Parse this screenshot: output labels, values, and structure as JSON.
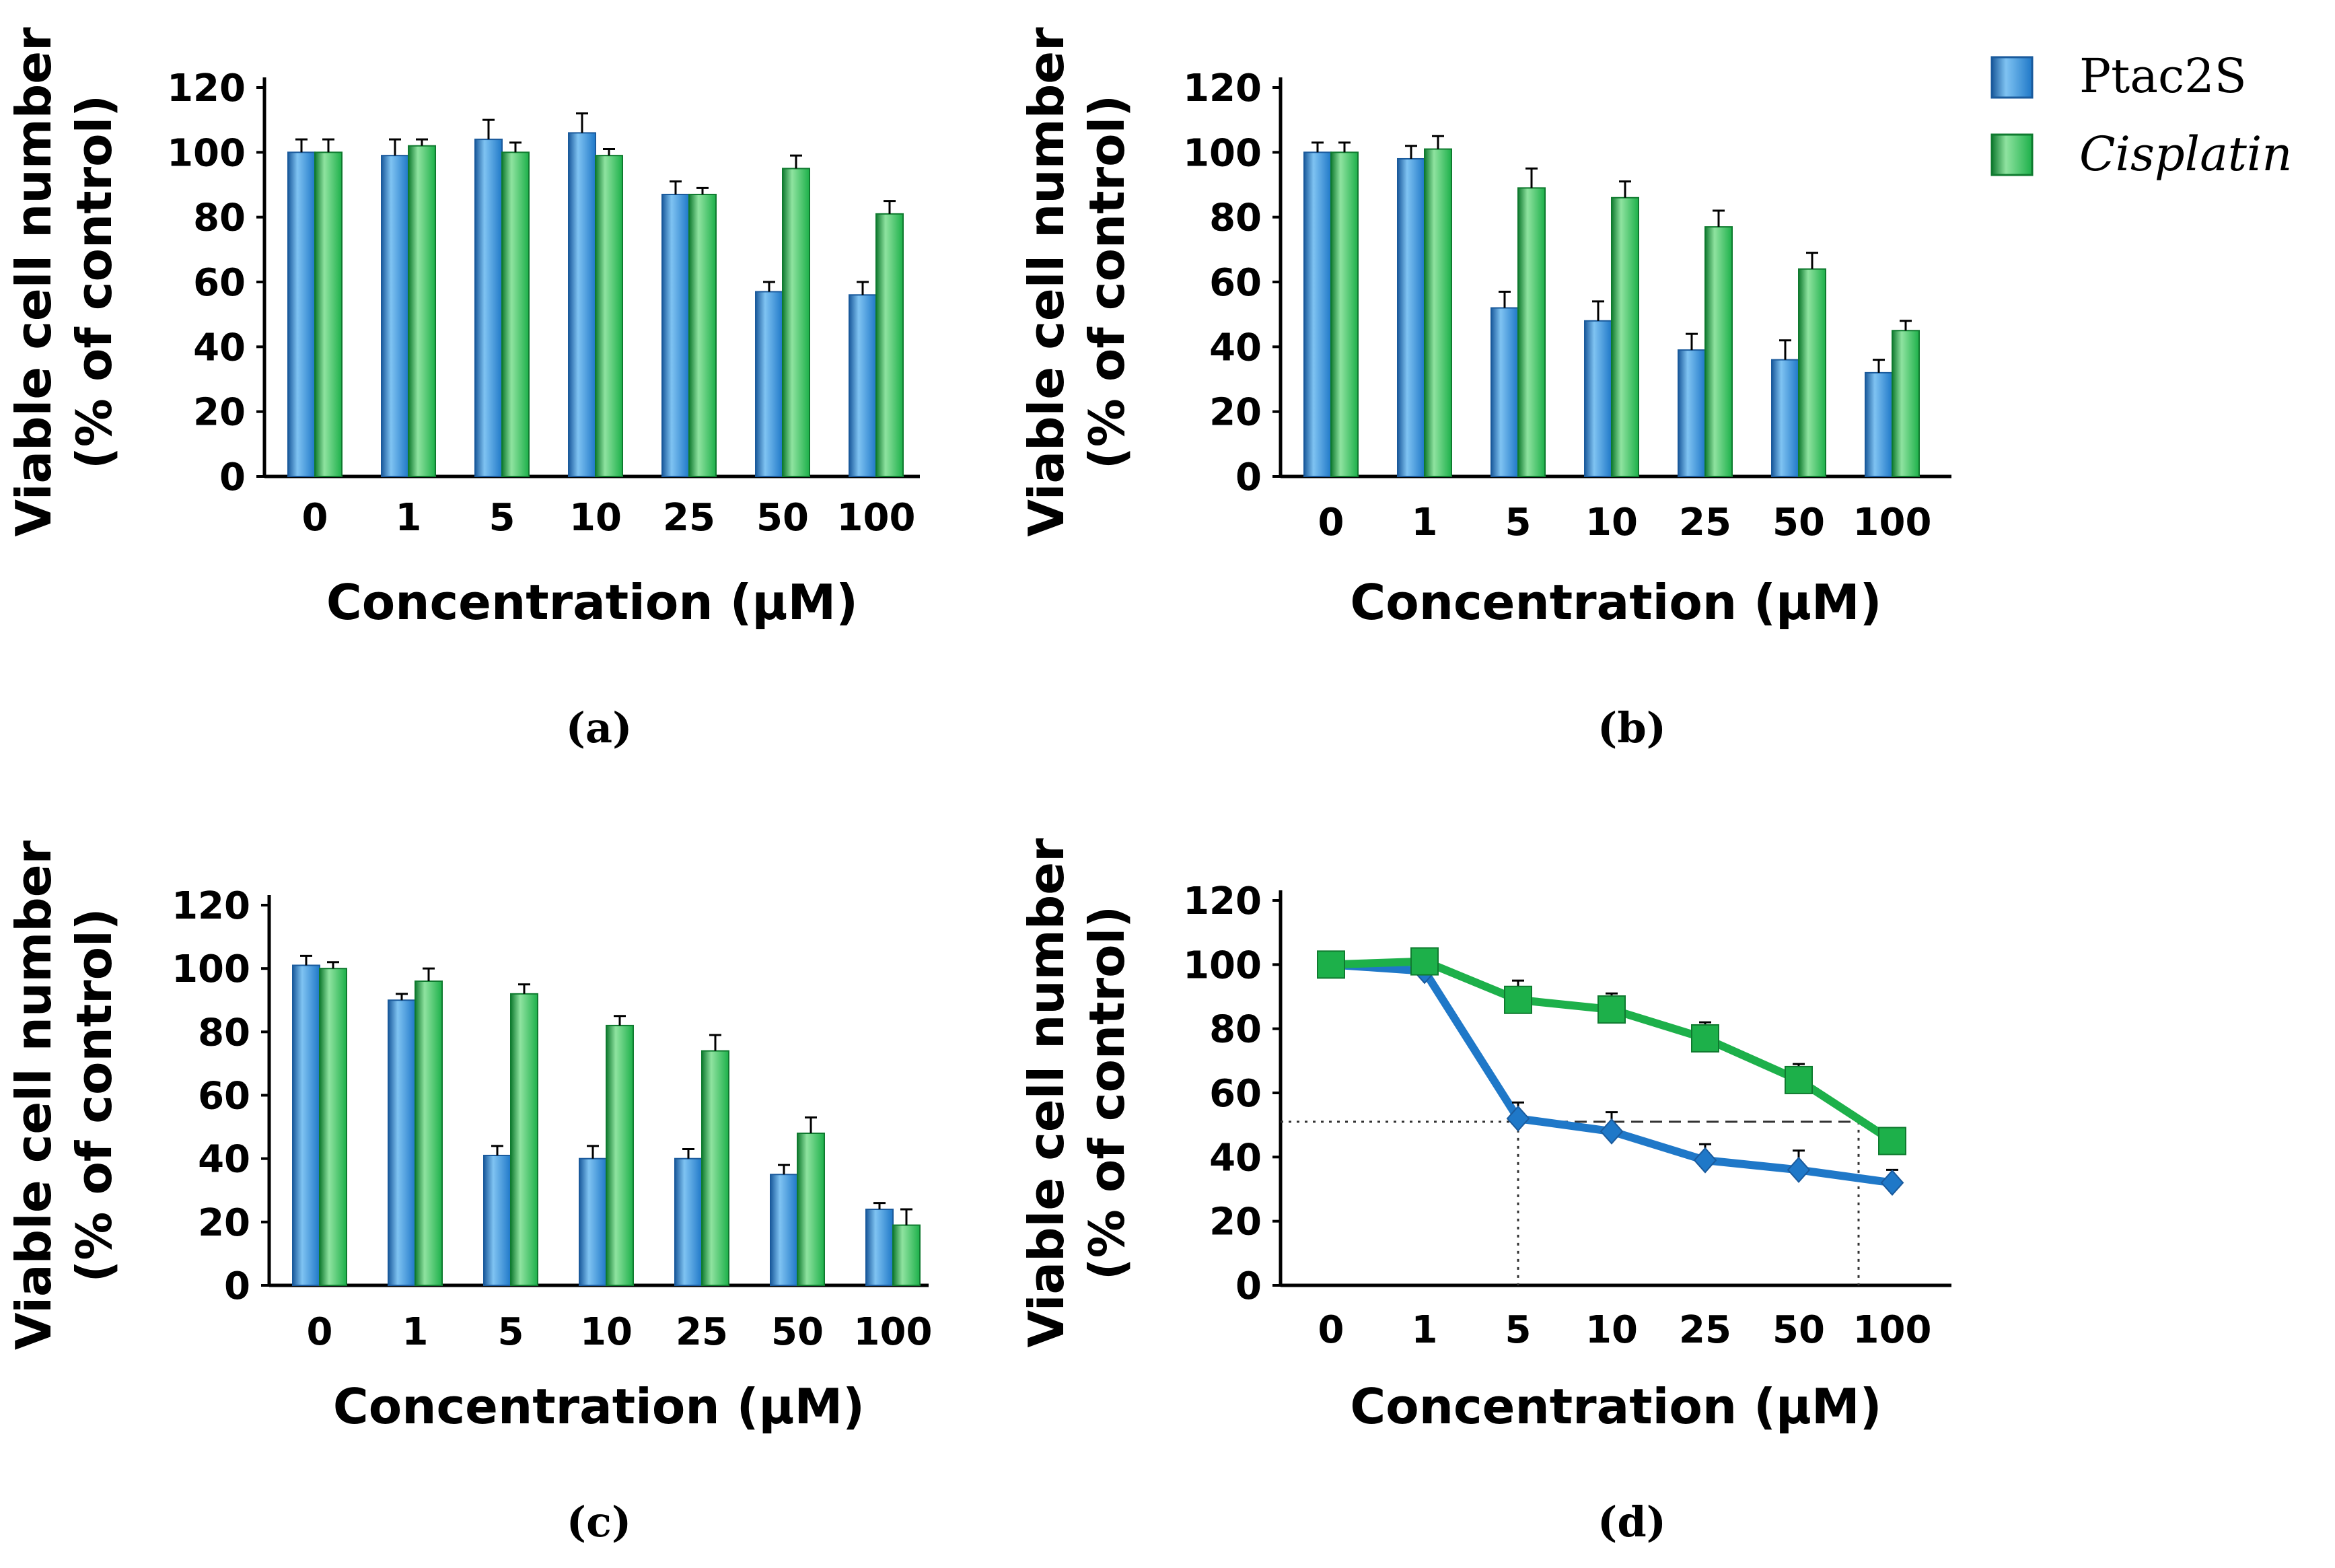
{
  "colors": {
    "ptac2s": "#1f78c8",
    "ptac2s_light": "#7fc3f2",
    "ptac2s_dark": "#1a5a9c",
    "cisplatin": "#1db04a",
    "cisplatin_light": "#8fe3a0",
    "cisplatin_dark": "#0f7a2f",
    "axis": "#000000",
    "guide": "#333333"
  },
  "legend": {
    "items": [
      {
        "label": "Ptac2S",
        "series": "ptac2s",
        "italic": false
      },
      {
        "label": "Cisplatin",
        "series": "cisplatin",
        "italic": true
      }
    ]
  },
  "chart_data": [
    {
      "panel": "(a)",
      "type": "bar",
      "xlabel": "Concentration (μM)",
      "ylabel_line1": "Viable cell number",
      "ylabel_line2": "(% of control)",
      "ylim": [
        0,
        120
      ],
      "yticks": [
        "0",
        "20",
        "40",
        "60",
        "80",
        "100",
        "120"
      ],
      "categories": [
        "0",
        "1",
        "5",
        "10",
        "25",
        "50",
        "100"
      ],
      "series": [
        {
          "name": "Ptac2S",
          "key": "ptac2s",
          "values": [
            100,
            99,
            104,
            106,
            87,
            57,
            56
          ],
          "errors": [
            4,
            5,
            6,
            6,
            4,
            3,
            4
          ]
        },
        {
          "name": "Cisplatin",
          "key": "cisplatin",
          "values": [
            100,
            102,
            100,
            99,
            87,
            95,
            81
          ],
          "errors": [
            4,
            2,
            3,
            2,
            2,
            4,
            4
          ]
        }
      ]
    },
    {
      "panel": "(b)",
      "type": "bar",
      "xlabel": "Concentration (μM)",
      "ylabel_line1": "Viable cell number",
      "ylabel_line2": "(% of control)",
      "ylim": [
        0,
        120
      ],
      "yticks": [
        "0",
        "20",
        "40",
        "60",
        "80",
        "100",
        "120"
      ],
      "categories": [
        "0",
        "1",
        "5",
        "10",
        "25",
        "50",
        "100"
      ],
      "series": [
        {
          "name": "Ptac2S",
          "key": "ptac2s",
          "values": [
            100,
            98,
            52,
            48,
            39,
            36,
            32
          ],
          "errors": [
            3,
            4,
            5,
            6,
            5,
            6,
            4
          ]
        },
        {
          "name": "Cisplatin",
          "key": "cisplatin",
          "values": [
            100,
            101,
            89,
            86,
            77,
            64,
            45
          ],
          "errors": [
            3,
            4,
            6,
            5,
            5,
            5,
            3
          ]
        }
      ]
    },
    {
      "panel": "(c)",
      "type": "bar",
      "xlabel": "Concentration (μM)",
      "ylabel_line1": "Viable cell number",
      "ylabel_line2": "(% of control)",
      "ylim": [
        0,
        120
      ],
      "yticks": [
        "0",
        "20",
        "40",
        "60",
        "80",
        "100",
        "120"
      ],
      "categories": [
        "0",
        "1",
        "5",
        "10",
        "25",
        "50",
        "100"
      ],
      "series": [
        {
          "name": "Ptac2S",
          "key": "ptac2s",
          "values": [
            101,
            90,
            41,
            40,
            40,
            35,
            24
          ],
          "errors": [
            3,
            2,
            3,
            4,
            3,
            3,
            2
          ]
        },
        {
          "name": "Cisplatin",
          "key": "cisplatin",
          "values": [
            100,
            96,
            92,
            82,
            74,
            48,
            19
          ],
          "errors": [
            2,
            4,
            3,
            3,
            5,
            5,
            5
          ]
        }
      ]
    },
    {
      "panel": "(d)",
      "type": "line",
      "xlabel": "Concentration (μM)",
      "ylabel_line1": "Viable cell number",
      "ylabel_line2": "(% of control)",
      "ylim": [
        0,
        120
      ],
      "yticks": [
        "0",
        "20",
        "40",
        "60",
        "80",
        "100",
        "120"
      ],
      "categories": [
        "0",
        "1",
        "5",
        "10",
        "25",
        "50",
        "100"
      ],
      "series": [
        {
          "name": "Ptac2S",
          "key": "ptac2s",
          "marker": "diamond",
          "values": [
            100,
            98,
            52,
            48,
            39,
            36,
            32
          ],
          "errors": [
            3,
            4,
            5,
            6,
            5,
            6,
            4
          ]
        },
        {
          "name": "Cisplatin",
          "key": "cisplatin",
          "marker": "square",
          "values": [
            100,
            101,
            89,
            86,
            77,
            64,
            45
          ],
          "errors": [
            3,
            4,
            6,
            5,
            5,
            5,
            3
          ]
        }
      ],
      "reference_level": 51,
      "reference_x_ptac2s": 5,
      "reference_x_cisplatin": 100
    }
  ]
}
